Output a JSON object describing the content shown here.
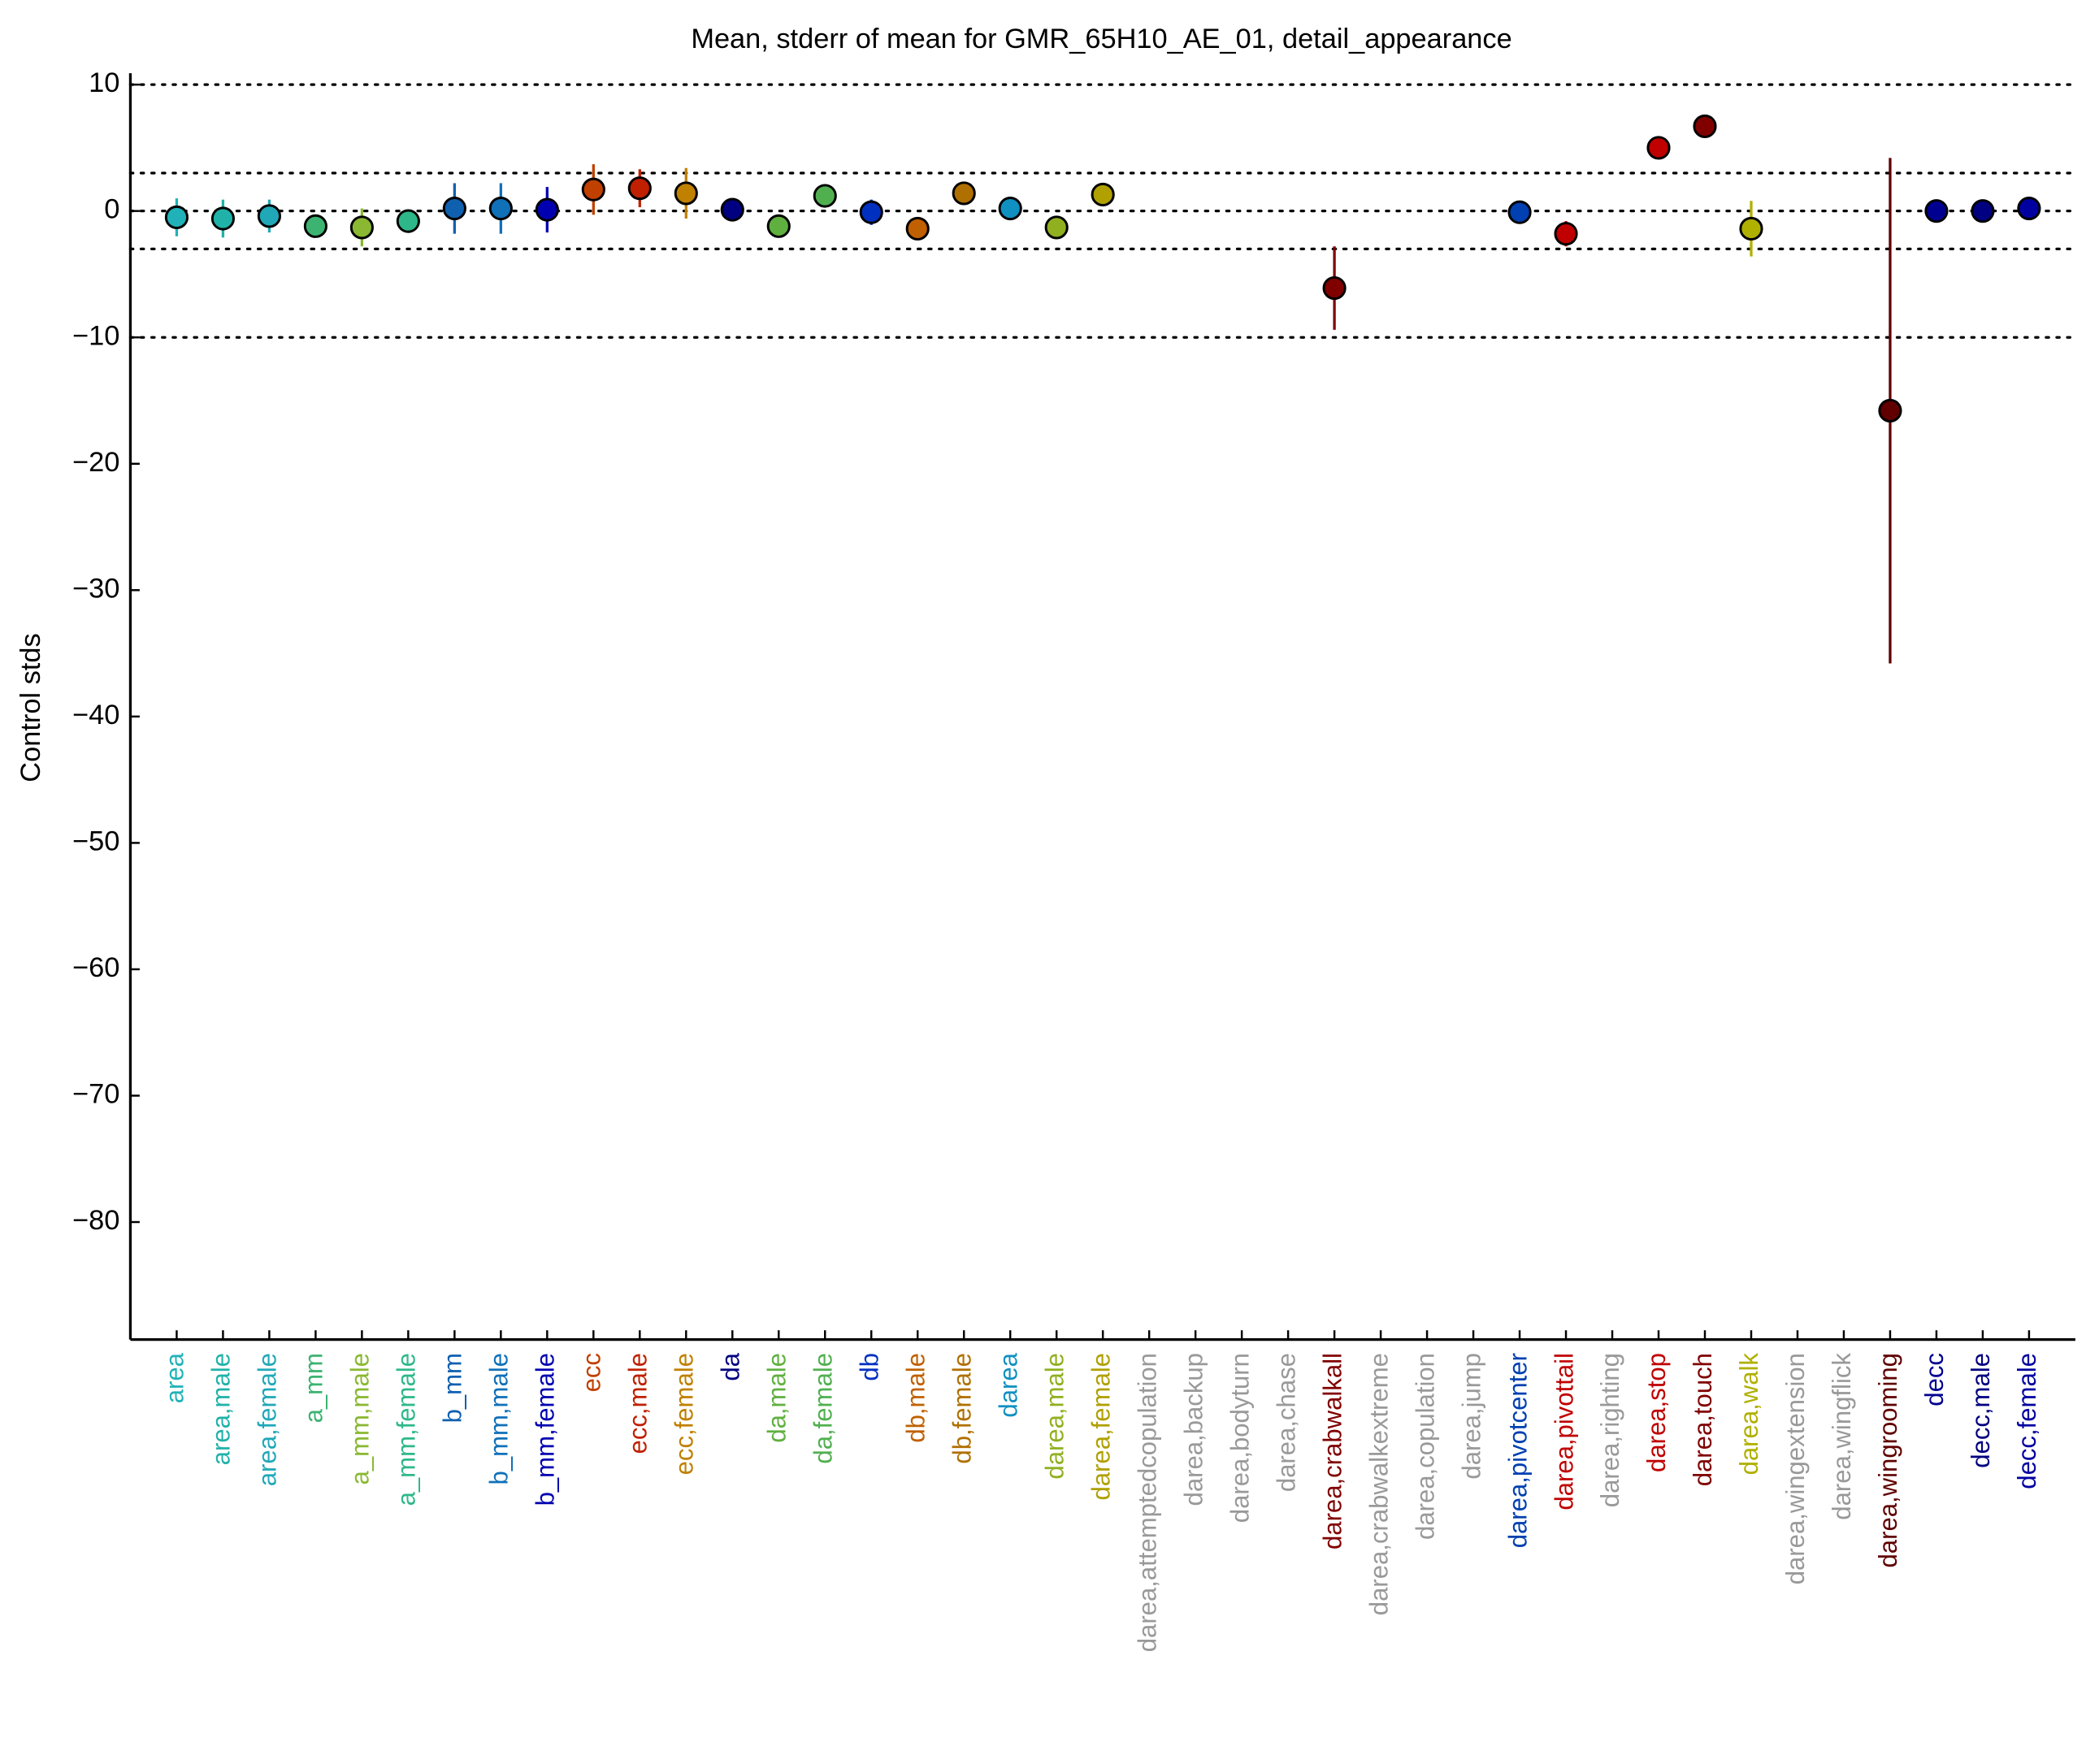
{
  "chart_data": {
    "type": "errorbar",
    "title": "Mean, stderr of mean for GMR_65H10_AE_01, detail_appearance",
    "y_label": "Control stds",
    "categories": [
      "area",
      "area,male",
      "area,female",
      "a_mm",
      "a_mm,male",
      "a_mm,female",
      "b_mm",
      "b_mm,male",
      "b_mm,female",
      "ecc",
      "ecc,male",
      "ecc,female",
      "da",
      "da,male",
      "da,female",
      "db",
      "db,male",
      "db,female",
      "darea",
      "darea,male",
      "darea,female",
      "darea,attemptedcopulation",
      "darea,backup",
      "darea,bodyturn",
      "darea,chase",
      "darea,crabwalkall",
      "darea,crabwalkextreme",
      "darea,copulation",
      "darea,jump",
      "darea,pivotcenter",
      "darea,pivottail",
      "darea,righting",
      "darea,stop",
      "darea,touch",
      "darea,walk",
      "darea,wingextension",
      "darea,wingflick",
      "darea,wingrooming",
      "decc",
      "decc,male",
      "decc,female"
    ],
    "values": [
      -0.5,
      -0.6,
      -0.4,
      -1.2,
      -1.3,
      -0.8,
      0.2,
      0.2,
      0.1,
      1.7,
      1.8,
      1.4,
      0.1,
      -1.2,
      1.2,
      -0.1,
      -1.4,
      1.4,
      0.2,
      -1.3,
      1.3,
      null,
      null,
      null,
      null,
      -6.1,
      null,
      null,
      null,
      -0.1,
      -1.8,
      null,
      5.0,
      6.7,
      -1.4,
      null,
      null,
      -15.8,
      0.0,
      0.0,
      0.2
    ],
    "errors": [
      1.5,
      1.5,
      1.3,
      0.8,
      1.5,
      0.8,
      2.0,
      2.0,
      1.8,
      2.0,
      1.5,
      2.0,
      0.5,
      0.5,
      0.6,
      1.0,
      0.8,
      0.8,
      0.8,
      0.5,
      0.6,
      null,
      null,
      null,
      null,
      3.3,
      null,
      null,
      null,
      0.5,
      1.0,
      null,
      0.6,
      0.5,
      2.2,
      null,
      null,
      20.0,
      0.5,
      0.5,
      0.5
    ],
    "colors": [
      "#20b2b8",
      "#20b2a8",
      "#20a8b8",
      "#3cb371",
      "#8ab832",
      "#2eb88a",
      "#1060b0",
      "#1070b8",
      "#0000b0",
      "#c04000",
      "#c02000",
      "#c08000",
      "#000080",
      "#60b040",
      "#50b050",
      "#0030c0",
      "#c06000",
      "#b07000",
      "#1090c0",
      "#90b020",
      "#b0a000",
      "#999999",
      "#999999",
      "#999999",
      "#999999",
      "#800000",
      "#999999",
      "#999999",
      "#999999",
      "#0040b0",
      "#c00000",
      "#999999",
      "#c00000",
      "#800000",
      "#b0b000",
      "#999999",
      "#999999",
      "#600000",
      "#000090",
      "#000080",
      "#0000a0"
    ],
    "xlim": [
      0,
      42
    ],
    "ylim": [
      -89.3,
      10.9
    ],
    "yticks": [
      {
        "value": -80,
        "label": "−80"
      },
      {
        "value": -70,
        "label": "−70"
      },
      {
        "value": -60,
        "label": "−60"
      },
      {
        "value": -50,
        "label": "−50"
      },
      {
        "value": -40,
        "label": "−40"
      },
      {
        "value": -30,
        "label": "−30"
      },
      {
        "value": -20,
        "label": "−20"
      },
      {
        "value": -10,
        "label": "−10"
      },
      0,
      10
    ],
    "reference_lines": [
      10,
      3,
      0,
      -3,
      -10
    ]
  }
}
